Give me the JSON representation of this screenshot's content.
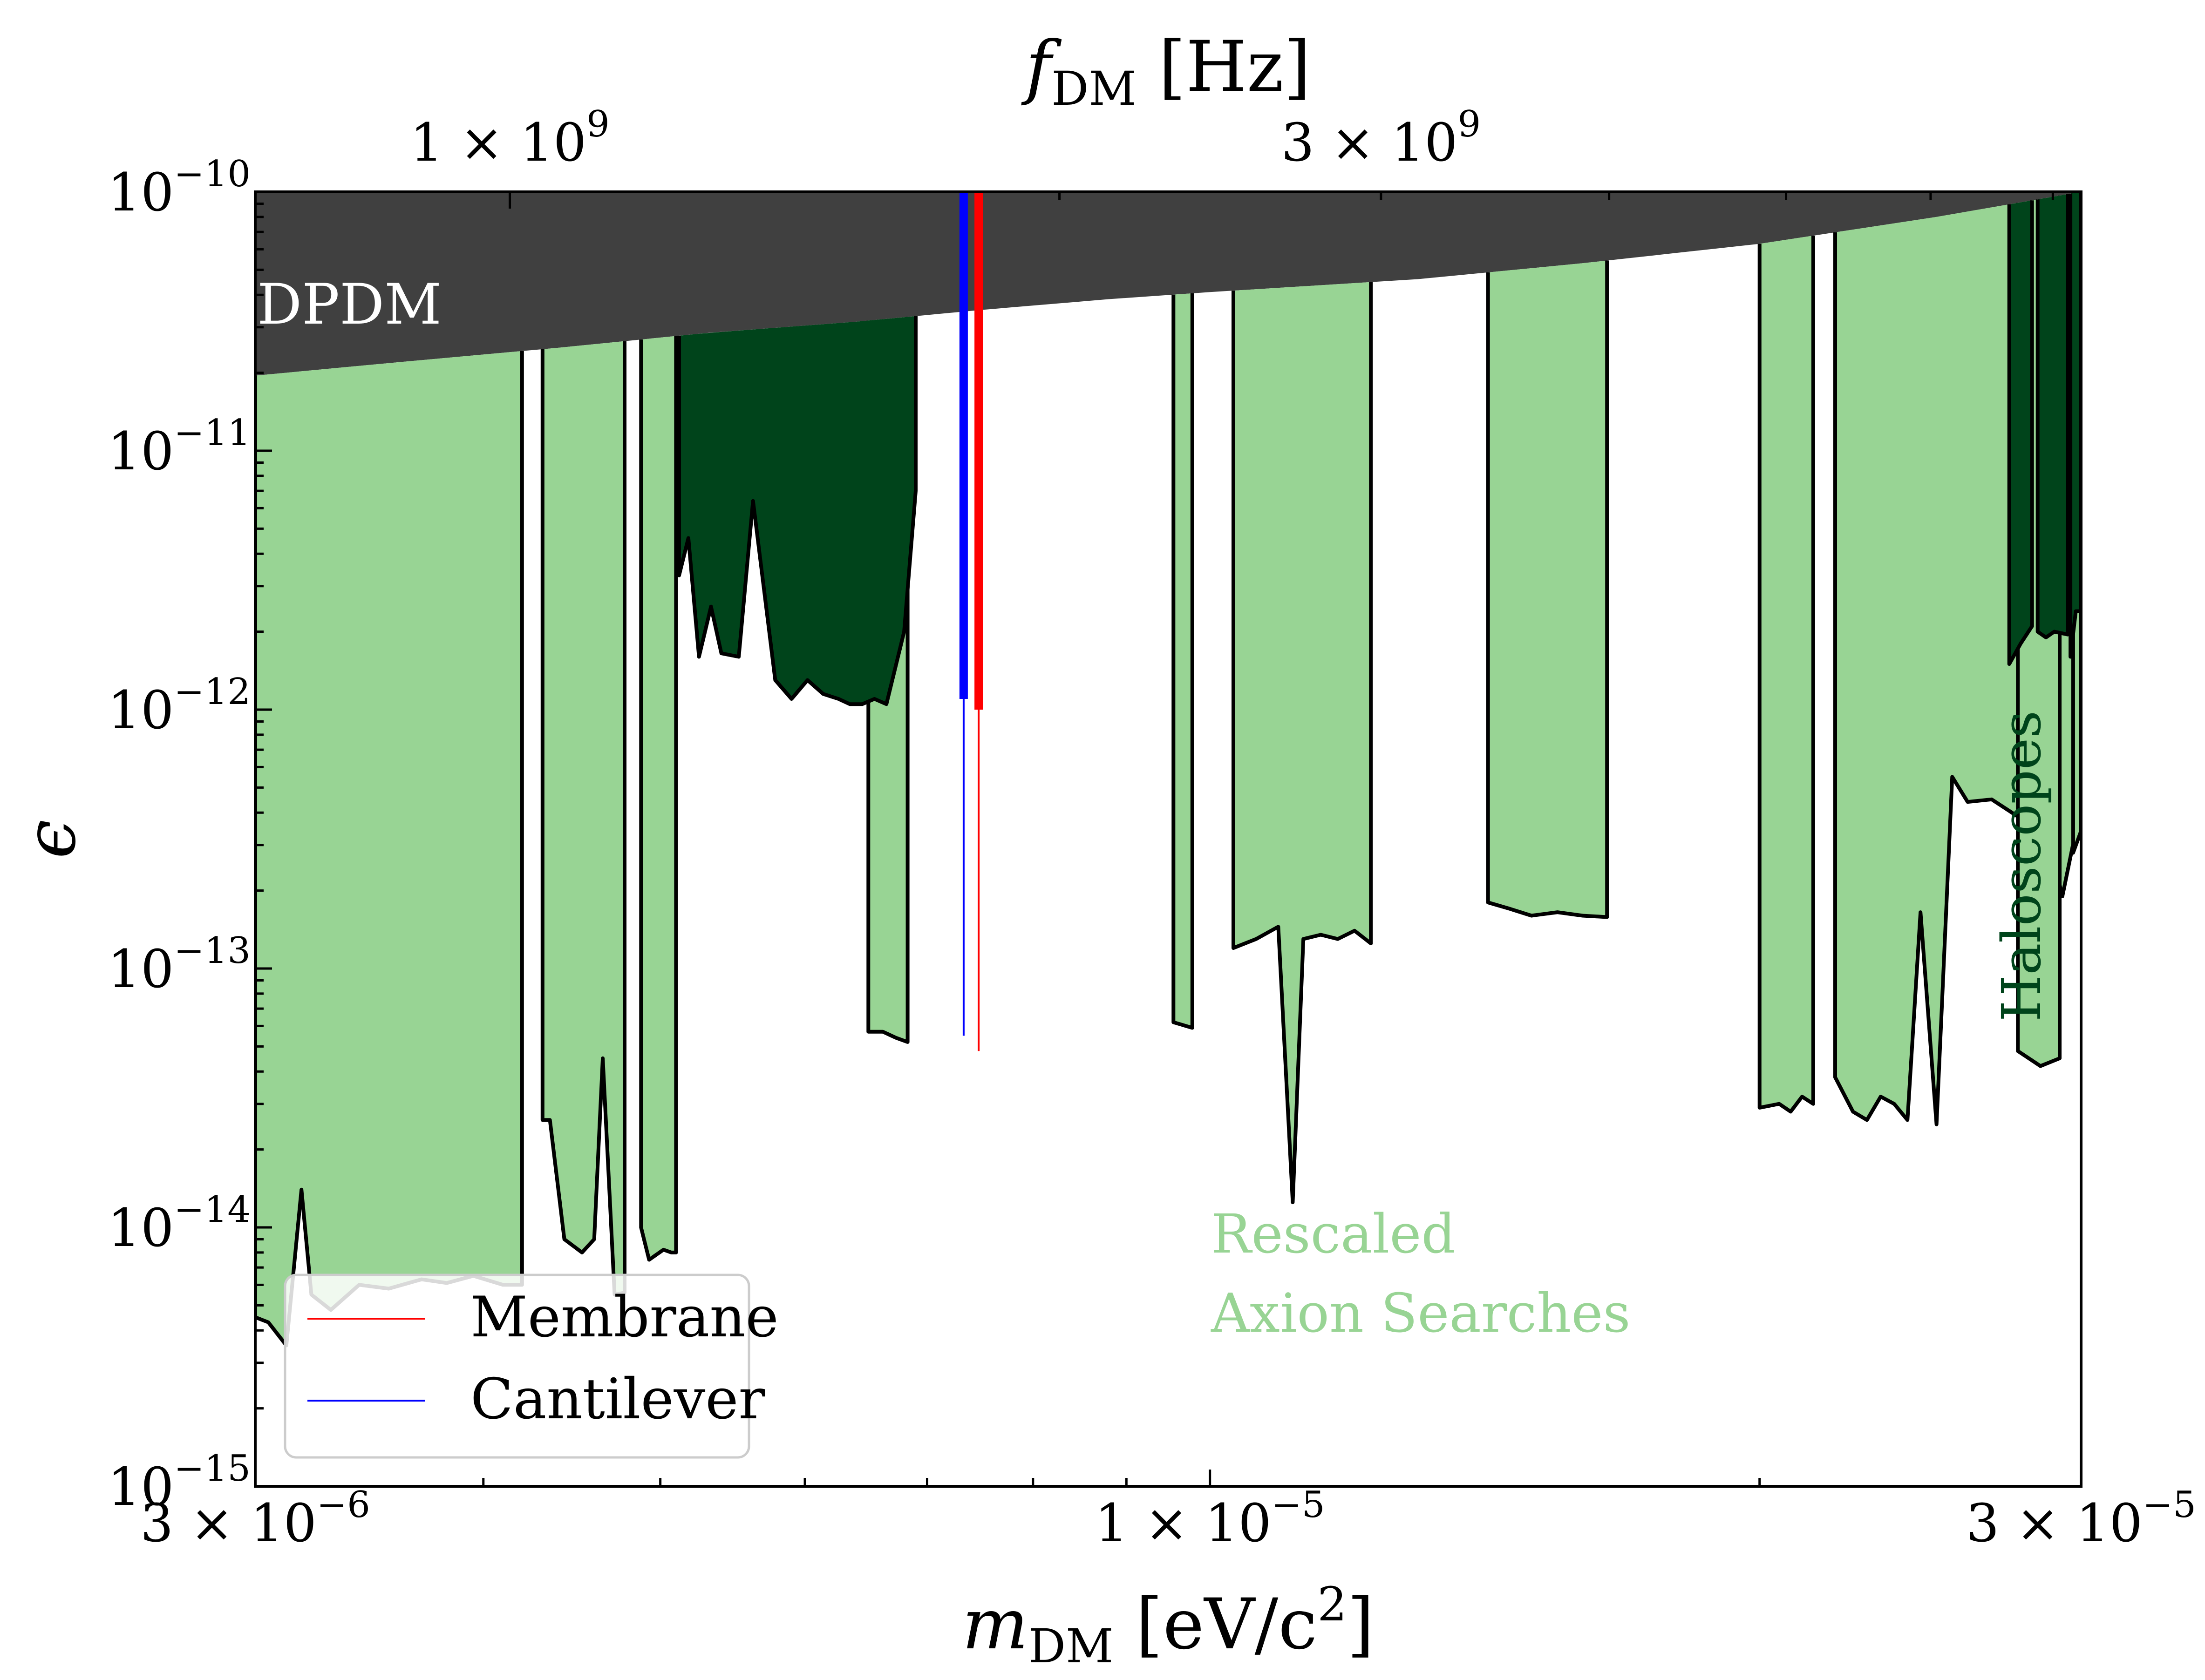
{
  "chart_data": {
    "type": "area",
    "x_scale": "log",
    "y_scale": "log",
    "xlim": [
      3e-06,
      3e-05
    ],
    "ylim": [
      1e-15,
      1e-10
    ],
    "xlabel": {
      "main": "m",
      "sub": "DM",
      "rest": " [eV/c",
      "sup": "2",
      "close": "]"
    },
    "top_xlabel": {
      "main": "f",
      "sub": "DM",
      "rest": " [Hz]"
    },
    "ylabel": "ϵ",
    "x_ticks": [
      {
        "value": 3e-06,
        "mantissa": "3 × 10",
        "exp": "−6"
      },
      {
        "value": 1e-05,
        "mantissa": "1 × 10",
        "exp": "−5"
      },
      {
        "value": 3e-05,
        "mantissa": "3 × 10",
        "exp": "−5"
      }
    ],
    "top_ticks": [
      {
        "value": 1000000000.0,
        "mantissa": "1 × 10",
        "exp": "9"
      },
      {
        "value": 3000000000.0,
        "mantissa": "3 × 10",
        "exp": "9"
      }
    ],
    "y_ticks": [
      {
        "value": 1e-10,
        "mantissa": "10",
        "exp": "−10"
      },
      {
        "value": 1e-11,
        "mantissa": "10",
        "exp": "−11"
      },
      {
        "value": 1e-12,
        "mantissa": "10",
        "exp": "−12"
      },
      {
        "value": 1e-13,
        "mantissa": "10",
        "exp": "−13"
      },
      {
        "value": 1e-14,
        "mantissa": "10",
        "exp": "−14"
      },
      {
        "value": 1e-15,
        "mantissa": "10",
        "exp": "−15"
      }
    ],
    "annotations": {
      "dpdm": "DPDM",
      "rescaled_line1": "Rescaled",
      "rescaled_line2": "Axion Searches",
      "haloscopes": "Haloscopes"
    },
    "legend": {
      "placement": "lower-left",
      "entries": [
        {
          "label": "Membrane",
          "color": "#ff0000"
        },
        {
          "label": "Cantilever",
          "color": "#0000ff"
        }
      ]
    },
    "colors": {
      "dpdm": "#404040",
      "rescaled": "#98d494",
      "haloscopes": "#00441b",
      "membrane": "#ff0000",
      "cantilever": "#0000ff"
    },
    "dpdm_boundary": [
      [
        3e-06,
        1.95e-11
      ],
      [
        3.6e-06,
        2.2e-11
      ],
      [
        4.4e-06,
        2.5e-11
      ],
      [
        5.3e-06,
        2.85e-11
      ],
      [
        6.4e-06,
        3.15e-11
      ],
      [
        7.5e-06,
        3.5e-11
      ],
      [
        8.8e-06,
        3.85e-11
      ],
      [
        1e-05,
        4.1e-11
      ],
      [
        1.3e-05,
        4.6e-11
      ],
      [
        1.6e-05,
        5.3e-11
      ],
      [
        2e-05,
        6.3e-11
      ],
      [
        2.5e-05,
        8e-11
      ],
      [
        3e-05,
        1e-10
      ]
    ],
    "series": [
      {
        "name": "Rescaled Axion Searches",
        "kind": "rescaled",
        "regions": [
          [
            [
              3e-06,
              4.5e-15
            ],
            [
              3.05e-06,
              4.3e-15
            ],
            [
              3.12e-06,
              3.5e-15
            ],
            [
              3.18e-06,
              1.4e-14
            ],
            [
              3.22e-06,
              5.5e-15
            ],
            [
              3.3e-06,
              4.8e-15
            ],
            [
              3.42e-06,
              6e-15
            ],
            [
              3.55e-06,
              5.8e-15
            ],
            [
              3.7e-06,
              6.3e-15
            ],
            [
              3.82e-06,
              6.1e-15
            ],
            [
              3.95e-06,
              6.5e-15
            ],
            [
              4.1e-06,
              6e-15
            ],
            [
              4.2e-06,
              6e-15
            ]
          ],
          [
            [
              4.31e-06,
              2.6e-14
            ],
            [
              4.35e-06,
              2.6e-14
            ],
            [
              4.43e-06,
              9e-15
            ],
            [
              4.53e-06,
              8e-15
            ],
            [
              4.6e-06,
              9e-15
            ],
            [
              4.65e-06,
              4.5e-14
            ],
            [
              4.72e-06,
              5.5e-15
            ],
            [
              4.78e-06,
              5.6e-15
            ]
          ],
          [
            [
              4.88e-06,
              1e-14
            ],
            [
              4.93e-06,
              7.5e-15
            ],
            [
              5.02e-06,
              8.2e-15
            ],
            [
              5.07e-06,
              8e-15
            ],
            [
              5.1e-06,
              8e-15
            ]
          ],
          [
            [
              6.5e-06,
              5.7e-14
            ],
            [
              6.62e-06,
              5.7e-14
            ],
            [
              6.73e-06,
              5.4e-14
            ],
            [
              6.83e-06,
              5.2e-14
            ]
          ],
          [
            [
              9.55e-06,
              6.2e-14
            ],
            [
              9.78e-06,
              5.9e-14
            ]
          ],
          [
            [
              1.03e-05,
              1.2e-13
            ],
            [
              1.06e-05,
              1.3e-13
            ],
            [
              1.09e-05,
              1.45e-13
            ],
            [
              1.11e-05,
              1.25e-14
            ],
            [
              1.125e-05,
              1.3e-13
            ],
            [
              1.15e-05,
              1.35e-13
            ],
            [
              1.175e-05,
              1.3e-13
            ],
            [
              1.2e-05,
              1.4e-13
            ],
            [
              1.225e-05,
              1.25e-13
            ]
          ],
          [
            [
              1.42e-05,
              1.8e-13
            ],
            [
              1.46e-05,
              1.7e-13
            ],
            [
              1.5e-05,
              1.6e-13
            ],
            [
              1.55e-05,
              1.65e-13
            ],
            [
              1.6e-05,
              1.6e-13
            ],
            [
              1.65e-05,
              1.58e-13
            ]
          ],
          [
            [
              2e-05,
              2.9e-14
            ],
            [
              2.05e-05,
              3e-14
            ],
            [
              2.08e-05,
              2.8e-14
            ],
            [
              2.11e-05,
              3.2e-14
            ],
            [
              2.14e-05,
              3e-14
            ]
          ],
          [
            [
              2.2e-05,
              3.8e-14
            ],
            [
              2.25e-05,
              2.8e-14
            ],
            [
              2.29e-05,
              2.6e-14
            ],
            [
              2.33e-05,
              3.2e-14
            ],
            [
              2.37e-05,
              3e-14
            ],
            [
              2.41e-05,
              2.6e-14
            ],
            [
              2.45e-05,
              1.65e-13
            ],
            [
              2.5e-05,
              2.5e-14
            ],
            [
              2.55e-05,
              5.5e-13
            ],
            [
              2.6e-05,
              4.4e-13
            ],
            [
              2.68e-05,
              4.5e-13
            ],
            [
              2.78e-05,
              3.8e-13
            ],
            [
              2.87e-05,
              3.5e-13
            ],
            [
              2.93e-05,
              1.9e-13
            ],
            [
              2.98e-05,
              3.4e-13
            ]
          ],
          [
            [
              2.77e-05,
              4.8e-14
            ],
            [
              2.85e-05,
              4.2e-14
            ],
            [
              2.92e-05,
              4.5e-14
            ]
          ],
          [
            [
              2.97e-05,
              2.8e-13
            ],
            [
              3e-05,
              3.4e-13
            ]
          ]
        ]
      },
      {
        "name": "Haloscopes",
        "kind": "haloscopes",
        "regions": [
          [
            [
              5.12e-06,
              3.3e-12
            ],
            [
              5.18e-06,
              4.6e-12
            ],
            [
              5.25e-06,
              1.6e-12
            ],
            [
              5.33e-06,
              2.5e-12
            ],
            [
              5.4e-06,
              1.65e-12
            ],
            [
              5.52e-06,
              1.6e-12
            ],
            [
              5.62e-06,
              6.4e-12
            ],
            [
              5.78e-06,
              1.3e-12
            ],
            [
              5.9e-06,
              1.1e-12
            ],
            [
              6.02e-06,
              1.3e-12
            ],
            [
              6.14e-06,
              1.15e-12
            ],
            [
              6.26e-06,
              1.1e-12
            ],
            [
              6.35e-06,
              1.05e-12
            ],
            [
              6.45e-06,
              1.05e-12
            ],
            [
              6.55e-06,
              1.1e-12
            ],
            [
              6.65e-06,
              1.05e-12
            ],
            [
              6.8e-06,
              2e-12
            ],
            [
              6.9e-06,
              7e-12
            ]
          ],
          [
            [
              2.74e-05,
              1.5e-12
            ],
            [
              2.78e-05,
              1.8e-12
            ],
            [
              2.82e-05,
              2.1e-12
            ]
          ],
          [
            [
              2.84e-05,
              2e-12
            ],
            [
              2.87e-05,
              1.9e-12
            ],
            [
              2.9e-05,
              2e-12
            ],
            [
              2.95e-05,
              1.95e-12
            ]
          ],
          [
            [
              2.96e-05,
              1.6e-12
            ],
            [
              2.98e-05,
              2.4e-12
            ],
            [
              3e-05,
              2.4e-12
            ]
          ]
        ]
      }
    ],
    "membrane": {
      "mass": 7.47e-06,
      "bold_from": 1e-12,
      "thin_to": 4.8e-14
    },
    "cantilever": {
      "mass": 7.33e-06,
      "bold_from": 1.1e-12,
      "thin_to": 5.5e-14
    }
  }
}
